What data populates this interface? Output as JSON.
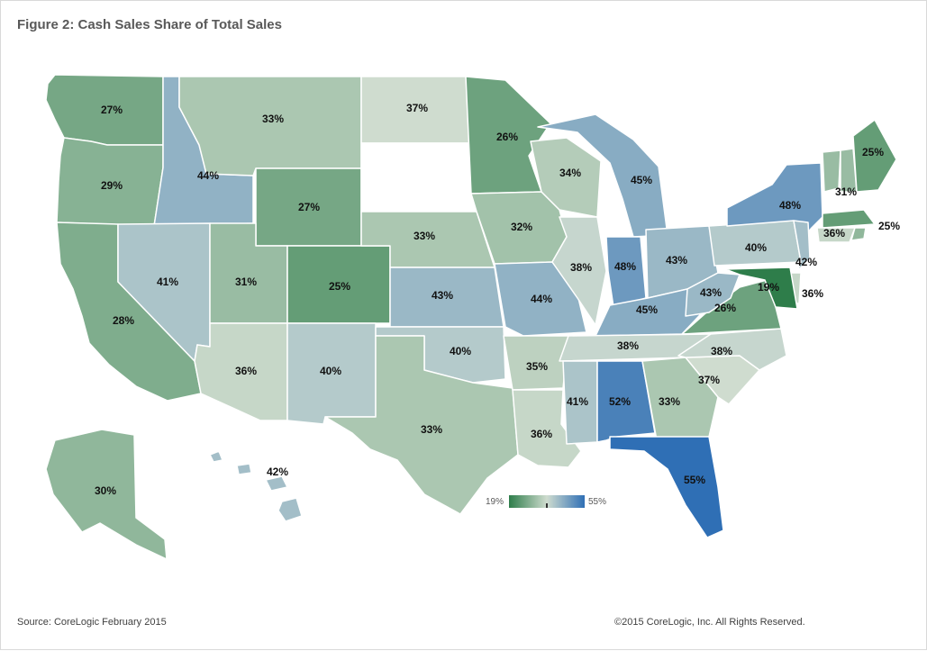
{
  "title": "Figure 2: Cash Sales Share of Total Sales",
  "source": "Source: CoreLogic February 2015",
  "copyright": "©2015 CoreLogic, Inc. All Rights Reserved.",
  "legend": {
    "min_label": "19%",
    "max_label": "55%",
    "min": 19,
    "max": 55,
    "color_low": "#2e7d4a",
    "color_mid": "#cfdccf",
    "color_high": "#2f6fb5"
  },
  "no_data_color": "#ffffff",
  "states": [
    {
      "id": "WA",
      "label": "27%",
      "value": 27
    },
    {
      "id": "OR",
      "label": "29%",
      "value": 29
    },
    {
      "id": "CA",
      "label": "28%",
      "value": 28
    },
    {
      "id": "ID",
      "label": "44%",
      "value": 44
    },
    {
      "id": "NV",
      "label": "41%",
      "value": 41
    },
    {
      "id": "MT",
      "label": "33%",
      "value": 33
    },
    {
      "id": "WY",
      "label": "27%",
      "value": 27
    },
    {
      "id": "UT",
      "label": "31%",
      "value": 31
    },
    {
      "id": "AZ",
      "label": "36%",
      "value": 36
    },
    {
      "id": "CO",
      "label": "25%",
      "value": 25
    },
    {
      "id": "NM",
      "label": "40%",
      "value": 40
    },
    {
      "id": "ND",
      "label": "37%",
      "value": 37
    },
    {
      "id": "SD",
      "label": "",
      "value": null
    },
    {
      "id": "NE",
      "label": "33%",
      "value": 33
    },
    {
      "id": "KS",
      "label": "43%",
      "value": 43
    },
    {
      "id": "OK",
      "label": "40%",
      "value": 40
    },
    {
      "id": "TX",
      "label": "33%",
      "value": 33
    },
    {
      "id": "MN",
      "label": "26%",
      "value": 26
    },
    {
      "id": "IA",
      "label": "32%",
      "value": 32
    },
    {
      "id": "MO",
      "label": "44%",
      "value": 44
    },
    {
      "id": "AR",
      "label": "35%",
      "value": 35
    },
    {
      "id": "LA",
      "label": "36%",
      "value": 36
    },
    {
      "id": "WI",
      "label": "34%",
      "value": 34
    },
    {
      "id": "IL",
      "label": "38%",
      "value": 38
    },
    {
      "id": "MI",
      "label": "45%",
      "value": 45
    },
    {
      "id": "IN",
      "label": "48%",
      "value": 48
    },
    {
      "id": "OH",
      "label": "43%",
      "value": 43
    },
    {
      "id": "KY",
      "label": "45%",
      "value": 45
    },
    {
      "id": "TN",
      "label": "38%",
      "value": 38
    },
    {
      "id": "MS",
      "label": "41%",
      "value": 41
    },
    {
      "id": "AL",
      "label": "52%",
      "value": 52
    },
    {
      "id": "GA",
      "label": "33%",
      "value": 33
    },
    {
      "id": "FL",
      "label": "55%",
      "value": 55
    },
    {
      "id": "SC",
      "label": "37%",
      "value": 37
    },
    {
      "id": "NC",
      "label": "38%",
      "value": 38
    },
    {
      "id": "VA",
      "label": "26%",
      "value": 26
    },
    {
      "id": "WV",
      "label": "43%",
      "value": 43
    },
    {
      "id": "PA",
      "label": "40%",
      "value": 40
    },
    {
      "id": "NY",
      "label": "48%",
      "value": 48
    },
    {
      "id": "VT",
      "label": "31%",
      "value": 31
    },
    {
      "id": "NH",
      "label": "",
      "value": 31
    },
    {
      "id": "ME",
      "label": "25%",
      "value": 25
    },
    {
      "id": "MA",
      "label": "25%",
      "value": 25
    },
    {
      "id": "CT",
      "label": "36%",
      "value": 36
    },
    {
      "id": "RI",
      "label": "",
      "value": 30
    },
    {
      "id": "NJ",
      "label": "42%",
      "value": 42
    },
    {
      "id": "DE",
      "label": "36%",
      "value": 36
    },
    {
      "id": "MD",
      "label": "19%",
      "value": 19
    },
    {
      "id": "AK",
      "label": "30%",
      "value": 30
    },
    {
      "id": "HI",
      "label": "42%",
      "value": 42
    }
  ]
}
